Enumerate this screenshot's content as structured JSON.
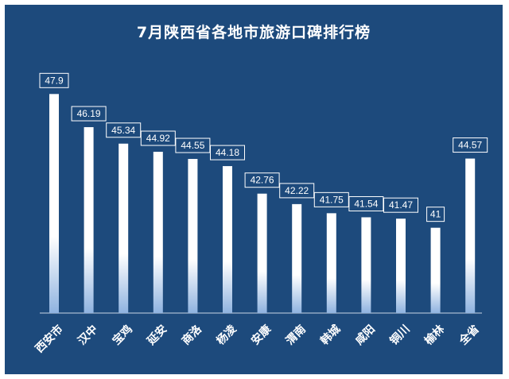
{
  "chart_data": {
    "type": "bar",
    "title": "7月陕西省各地市旅游口碑排行榜",
    "categories": [
      "西安市",
      "汉中",
      "宝鸡",
      "延安",
      "商洛",
      "杨凌",
      "安康",
      "渭南",
      "韩城",
      "咸阳",
      "铜川",
      "榆林",
      "全省"
    ],
    "values": [
      47.9,
      46.19,
      45.34,
      44.92,
      44.55,
      44.18,
      42.76,
      42.22,
      41.75,
      41.54,
      41.47,
      41,
      44.57
    ],
    "value_labels": [
      "47.9",
      "46.19",
      "45.34",
      "44.92",
      "44.55",
      "44.18",
      "42.76",
      "42.22",
      "41.75",
      "41.54",
      "41.47",
      "41",
      "44.57"
    ],
    "ylim": [
      36.6,
      48.2
    ],
    "grid": false,
    "legend": "none",
    "colors": {
      "background": "#1d4a7c",
      "bar_top": "#ffffff",
      "bar_bottom": "#8fb3e0",
      "text": "#ffffff"
    }
  }
}
